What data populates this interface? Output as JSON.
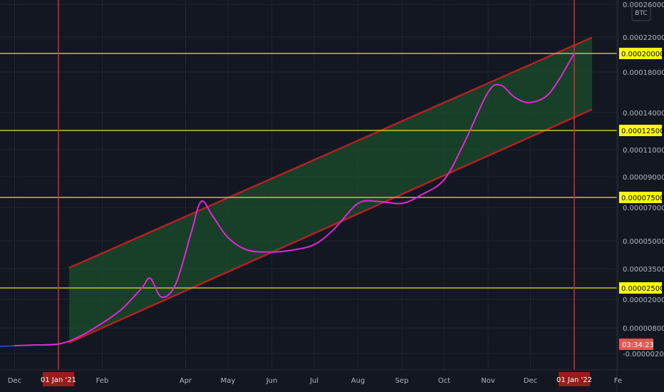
{
  "chart_data": {
    "type": "line",
    "currency_label": "BTC",
    "countdown": "03:34:23",
    "x_axis_labels": [
      "Dec",
      "01 Jan '21",
      "Feb",
      "Apr",
      "May",
      "Jun",
      "Jul",
      "Aug",
      "Sep",
      "Oct",
      "Nov",
      "Dec",
      "01 Jan '22",
      "Fe"
    ],
    "y_axis_labels": [
      "0.00026000",
      "0.00022000",
      "0.00018000",
      "0.00014000",
      "0.00011000",
      "0.00009000",
      "0.00007000",
      "0.00005000",
      "0.00003500",
      "0.00002000",
      "0.00000800",
      "-0.00000200"
    ],
    "horizontal_levels": [
      {
        "value": 0.0002,
        "label": "0.00020000"
      },
      {
        "value": 0.000125,
        "label": "0.00012500"
      },
      {
        "value": 7.5e-05,
        "label": "0.00007500"
      },
      {
        "value": 2.5e-05,
        "label": "0.00002500"
      }
    ],
    "vertical_markers": [
      {
        "date": "2021-01-01",
        "label": "01 Jan '21"
      },
      {
        "date": "2022-01-01",
        "label": "01 Jan '22"
      }
    ],
    "series": [
      {
        "x": [
          "2020-12-01",
          "2020-12-15",
          "2021-01-01",
          "2021-01-15",
          "2021-02-01",
          "2021-02-15",
          "2021-03-01",
          "2021-03-07",
          "2021-03-15",
          "2021-03-25",
          "2021-04-05",
          "2021-04-12",
          "2021-04-20",
          "2021-05-01",
          "2021-05-15",
          "2021-06-01",
          "2021-06-15",
          "2021-07-01",
          "2021-07-15",
          "2021-08-01",
          "2021-08-15",
          "2021-09-01",
          "2021-09-15",
          "2021-10-01",
          "2021-10-15",
          "2021-11-01",
          "2021-11-10",
          "2021-11-20",
          "2021-12-01",
          "2021-12-15",
          "2022-01-01"
        ],
        "y": [
          3e-07,
          6e-07,
          1e-06,
          4e-06,
          1e-05,
          1.6e-05,
          2.5e-05,
          3e-05,
          2.1e-05,
          2.7e-05,
          5.5e-05,
          7.3e-05,
          6.5e-05,
          5.2e-05,
          4.5e-05,
          4.4e-05,
          4.5e-05,
          4.8e-05,
          5.7e-05,
          7.2e-05,
          7.3e-05,
          7.2e-05,
          7.7e-05,
          8.8e-05,
          0.000115,
          0.00016,
          0.000167,
          0.000155,
          0.00015,
          0.00016,
          0.0002
        ]
      }
    ],
    "channel": {
      "start_date": "2021-01-01",
      "end_date": "2022-01-01",
      "upper": [
        3.3e-05,
        0.00021
      ],
      "lower": [
        -3e-07,
        0.000136
      ]
    },
    "colors": {
      "background": "#131722",
      "price_line": "#e327d8",
      "channel_line": "#b22222",
      "channel_fill": "#1b4d2b",
      "level_line": "#c9c31c",
      "level_badge": "#ffff00",
      "marker_line": "#d32f2f",
      "countdown_badge": "#ef5350"
    },
    "grid": true
  }
}
